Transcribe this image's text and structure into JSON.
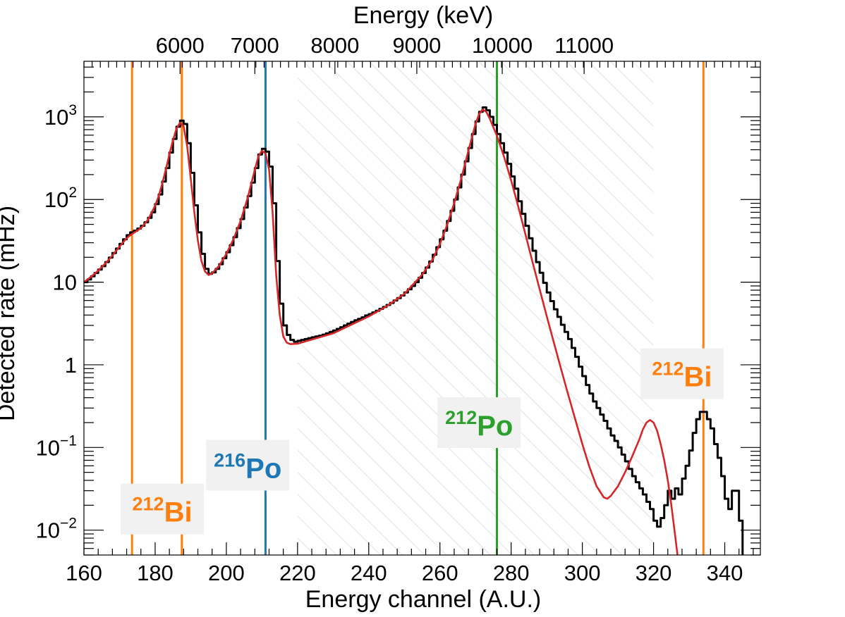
{
  "chart_data": {
    "type": "histogram",
    "xlabel": "Energy channel (A.U.)",
    "ylabel": "Detected rate (mHz)",
    "top_axis_label": "Energy (keV)",
    "xlim": [
      160,
      350
    ],
    "ylim": [
      0.005,
      4700
    ],
    "y_scale": "log",
    "x_ticks": [
      {
        "value": 160,
        "label": "160"
      },
      {
        "value": 180,
        "label": "180"
      },
      {
        "value": 200,
        "label": "200"
      },
      {
        "value": 220,
        "label": "220"
      },
      {
        "value": 240,
        "label": "240"
      },
      {
        "value": 260,
        "label": "260"
      },
      {
        "value": 280,
        "label": "280"
      },
      {
        "value": 300,
        "label": "300"
      },
      {
        "value": 320,
        "label": "320"
      },
      {
        "value": 340,
        "label": "340"
      }
    ],
    "top_ticks": [
      {
        "channel": 187.0,
        "label": "6000"
      },
      {
        "channel": 208.0,
        "label": "7000"
      },
      {
        "channel": 230.5,
        "label": "8000"
      },
      {
        "channel": 253.5,
        "label": "9000"
      },
      {
        "channel": 277.5,
        "label": "10000"
      },
      {
        "channel": 300.5,
        "label": "11000"
      }
    ],
    "y_ticks": [
      {
        "value": 0.01,
        "base": "10",
        "exp": "−2"
      },
      {
        "value": 0.1,
        "base": "10",
        "exp": "−1"
      },
      {
        "value": 1,
        "base": "1",
        "exp": ""
      },
      {
        "value": 10,
        "base": "10",
        "exp": ""
      },
      {
        "value": 100,
        "base": "10",
        "exp": "2"
      },
      {
        "value": 1000,
        "base": "10",
        "exp": "3"
      }
    ],
    "hatched_region": [
      220,
      320
    ],
    "vertical_lines": [
      {
        "channel": 173.5,
        "color": "#ff7f0e"
      },
      {
        "channel": 187.5,
        "color": "#ff7f0e"
      },
      {
        "channel": 211.0,
        "color": "#1f77b4"
      },
      {
        "channel": 276.0,
        "color": "#2ca02c"
      },
      {
        "channel": 334.0,
        "color": "#ff7f0e"
      }
    ],
    "isotope_labels": [
      {
        "mass": "212",
        "symbol": "Bi",
        "color": "#ff7f0e",
        "channel": 182,
        "rate": 0.018
      },
      {
        "mass": "216",
        "symbol": "Po",
        "color": "#1f77b4",
        "channel": 206,
        "rate": 0.061
      },
      {
        "mass": "212",
        "symbol": "Po",
        "color": "#2ca02c",
        "channel": 271,
        "rate": 0.2
      },
      {
        "mass": "212",
        "symbol": "Bi",
        "color": "#ff7f0e",
        "channel": 328,
        "rate": 0.78
      }
    ],
    "series": [
      {
        "style": "step",
        "color": "#000000",
        "bin_width": 1,
        "points": [
          [
            160,
            10
          ],
          [
            161,
            10.8
          ],
          [
            162,
            11.8
          ],
          [
            163,
            12.9
          ],
          [
            164,
            14.2
          ],
          [
            165,
            15.6
          ],
          [
            166,
            17.5
          ],
          [
            167,
            19.8
          ],
          [
            168,
            22.5
          ],
          [
            169,
            25.5
          ],
          [
            170,
            29
          ],
          [
            171,
            33
          ],
          [
            172,
            37
          ],
          [
            173,
            40
          ],
          [
            174,
            42
          ],
          [
            175,
            44.5
          ],
          [
            176,
            48
          ],
          [
            177,
            53
          ],
          [
            178,
            60
          ],
          [
            179,
            70
          ],
          [
            180,
            88
          ],
          [
            181,
            115
          ],
          [
            182,
            165
          ],
          [
            183,
            240
          ],
          [
            184,
            370
          ],
          [
            185,
            540
          ],
          [
            186,
            760
          ],
          [
            187,
            900
          ],
          [
            188,
            820
          ],
          [
            189,
            480
          ],
          [
            190,
            210
          ],
          [
            191,
            85
          ],
          [
            192,
            40
          ],
          [
            193,
            22
          ],
          [
            194,
            14.5
          ],
          [
            195,
            12.6
          ],
          [
            196,
            13.1
          ],
          [
            197,
            14.5
          ],
          [
            198,
            16.5
          ],
          [
            199,
            19.5
          ],
          [
            200,
            23
          ],
          [
            201,
            28
          ],
          [
            202,
            35
          ],
          [
            203,
            45
          ],
          [
            204,
            58
          ],
          [
            205,
            80
          ],
          [
            206,
            110
          ],
          [
            207,
            160
          ],
          [
            208,
            240
          ],
          [
            209,
            350
          ],
          [
            210,
            410
          ],
          [
            211,
            380
          ],
          [
            212,
            250
          ],
          [
            213,
            90
          ],
          [
            214,
            18
          ],
          [
            215,
            5.5
          ],
          [
            216,
            3
          ],
          [
            217,
            2.3
          ],
          [
            218,
            2.0
          ],
          [
            219,
            1.9
          ],
          [
            220,
            1.95
          ],
          [
            221,
            2.0
          ],
          [
            222,
            2.05
          ],
          [
            223,
            2.1
          ],
          [
            224,
            2.15
          ],
          [
            225,
            2.2
          ],
          [
            226,
            2.25
          ],
          [
            227,
            2.32
          ],
          [
            228,
            2.4
          ],
          [
            229,
            2.5
          ],
          [
            230,
            2.6
          ],
          [
            231,
            2.72
          ],
          [
            232,
            2.85
          ],
          [
            233,
            3.0
          ],
          [
            234,
            3.15
          ],
          [
            235,
            3.3
          ],
          [
            236,
            3.45
          ],
          [
            237,
            3.6
          ],
          [
            238,
            3.75
          ],
          [
            239,
            3.95
          ],
          [
            240,
            4.1
          ],
          [
            241,
            4.3
          ],
          [
            242,
            4.5
          ],
          [
            243,
            4.75
          ],
          [
            244,
            5.0
          ],
          [
            245,
            5.3
          ],
          [
            246,
            5.6
          ],
          [
            247,
            6.0
          ],
          [
            248,
            6.4
          ],
          [
            249,
            6.9
          ],
          [
            250,
            7.5
          ],
          [
            251,
            8.2
          ],
          [
            252,
            9.0
          ],
          [
            253,
            10.0
          ],
          [
            254,
            11.3
          ],
          [
            255,
            12.9
          ],
          [
            256,
            15.0
          ],
          [
            257,
            17.8
          ],
          [
            258,
            21.5
          ],
          [
            259,
            26.5
          ],
          [
            260,
            33
          ],
          [
            261,
            42
          ],
          [
            262,
            55
          ],
          [
            263,
            73
          ],
          [
            264,
            100
          ],
          [
            265,
            140
          ],
          [
            266,
            200
          ],
          [
            267,
            290
          ],
          [
            268,
            420
          ],
          [
            269,
            620
          ],
          [
            270,
            880
          ],
          [
            271,
            1150
          ],
          [
            272,
            1300
          ],
          [
            273,
            1200
          ],
          [
            274,
            1000
          ],
          [
            275,
            800
          ],
          [
            276,
            620
          ],
          [
            277,
            480
          ],
          [
            278,
            370
          ],
          [
            279,
            270
          ],
          [
            280,
            190
          ],
          [
            281,
            135
          ],
          [
            282,
            95
          ],
          [
            283,
            67
          ],
          [
            284,
            48
          ],
          [
            285,
            34
          ],
          [
            286,
            24
          ],
          [
            287,
            17.5
          ],
          [
            288,
            13
          ],
          [
            289,
            9.8
          ],
          [
            290,
            7.5
          ],
          [
            291,
            5.9
          ],
          [
            292,
            4.7
          ],
          [
            293,
            3.8
          ],
          [
            294,
            3.05
          ],
          [
            295,
            2.5
          ],
          [
            296,
            2.05
          ],
          [
            297,
            1.6
          ],
          [
            298,
            1.25
          ],
          [
            299,
            0.95
          ],
          [
            300,
            0.73
          ],
          [
            301,
            0.57
          ],
          [
            302,
            0.45
          ],
          [
            303,
            0.36
          ],
          [
            304,
            0.3
          ],
          [
            305,
            0.25
          ],
          [
            306,
            0.21
          ],
          [
            307,
            0.17
          ],
          [
            308,
            0.14
          ],
          [
            309,
            0.12
          ],
          [
            310,
            0.1
          ],
          [
            311,
            0.082
          ],
          [
            312,
            0.068
          ],
          [
            313,
            0.055
          ],
          [
            314,
            0.045
          ],
          [
            315,
            0.038
          ],
          [
            316,
            0.032
          ],
          [
            317,
            0.027
          ],
          [
            318,
            0.022
          ],
          [
            319,
            0.018
          ],
          [
            320,
            0.013
          ],
          [
            321,
            0.011
          ],
          [
            322,
            0.014
          ],
          [
            323,
            0.02
          ],
          [
            324,
            0.03
          ],
          [
            325,
            0.024
          ],
          [
            326,
            0.032
          ],
          [
            327,
            0.027
          ],
          [
            328,
            0.042
          ],
          [
            329,
            0.06
          ],
          [
            330,
            0.092
          ],
          [
            331,
            0.15
          ],
          [
            332,
            0.22
          ],
          [
            333,
            0.27
          ],
          [
            334,
            0.27
          ],
          [
            335,
            0.22
          ],
          [
            336,
            0.17
          ],
          [
            337,
            0.11
          ],
          [
            338,
            0.075
          ],
          [
            339,
            0.045
          ],
          [
            340,
            0.024
          ],
          [
            341,
            0.018
          ],
          [
            342,
            0.03
          ],
          [
            343,
            0.03
          ],
          [
            344,
            0.013
          ],
          [
            345,
            0.004
          ]
        ]
      },
      {
        "style": "line",
        "color": "#d62728",
        "points": [
          [
            160,
            10
          ],
          [
            162,
            11.6
          ],
          [
            164,
            13.8
          ],
          [
            166,
            16.8
          ],
          [
            168,
            21
          ],
          [
            170,
            27
          ],
          [
            172,
            34
          ],
          [
            173,
            37
          ],
          [
            174,
            39.5
          ],
          [
            176,
            45
          ],
          [
            178,
            57
          ],
          [
            180,
            84
          ],
          [
            181,
            110
          ],
          [
            182,
            155
          ],
          [
            183,
            230
          ],
          [
            184,
            350
          ],
          [
            185,
            520
          ],
          [
            186,
            720
          ],
          [
            187,
            850
          ],
          [
            188,
            770
          ],
          [
            189,
            440
          ],
          [
            190,
            180
          ],
          [
            191,
            70
          ],
          [
            192,
            32
          ],
          [
            193,
            18
          ],
          [
            194,
            13.5
          ],
          [
            195,
            12.2
          ],
          [
            196,
            12.8
          ],
          [
            198,
            15.8
          ],
          [
            200,
            22
          ],
          [
            202,
            33
          ],
          [
            204,
            55
          ],
          [
            206,
            105
          ],
          [
            208,
            230
          ],
          [
            209,
            330
          ],
          [
            210,
            390
          ],
          [
            211,
            360
          ],
          [
            212,
            230
          ],
          [
            213,
            70
          ],
          [
            214,
            12
          ],
          [
            215,
            4
          ],
          [
            216,
            2.2
          ],
          [
            217,
            1.85
          ],
          [
            218,
            1.78
          ],
          [
            220,
            1.8
          ],
          [
            230,
            2.4
          ],
          [
            240,
            3.85
          ],
          [
            245,
            5.1
          ],
          [
            250,
            7.2
          ],
          [
            255,
            12.3
          ],
          [
            258,
            19
          ],
          [
            260,
            29
          ],
          [
            262,
            49
          ],
          [
            264,
            90
          ],
          [
            266,
            180
          ],
          [
            268,
            390
          ],
          [
            270,
            820
          ],
          [
            271,
            1080
          ],
          [
            272,
            1230
          ],
          [
            273,
            1150
          ],
          [
            274,
            950
          ],
          [
            276,
            590
          ],
          [
            278,
            330
          ],
          [
            280,
            170
          ],
          [
            282,
            82
          ],
          [
            284,
            38
          ],
          [
            286,
            17.5
          ],
          [
            288,
            8.2
          ],
          [
            290,
            3.85
          ],
          [
            292,
            1.85
          ],
          [
            294,
            0.9
          ],
          [
            296,
            0.44
          ],
          [
            298,
            0.22
          ],
          [
            300,
            0.11
          ],
          [
            302,
            0.058
          ],
          [
            304,
            0.034
          ],
          [
            306,
            0.025
          ],
          [
            307,
            0.024
          ],
          [
            308,
            0.026
          ],
          [
            310,
            0.034
          ],
          [
            312,
            0.05
          ],
          [
            314,
            0.078
          ],
          [
            316,
            0.125
          ],
          [
            317,
            0.165
          ],
          [
            318,
            0.2
          ],
          [
            319,
            0.215
          ],
          [
            320,
            0.2
          ],
          [
            321,
            0.16
          ],
          [
            322,
            0.11
          ],
          [
            323,
            0.07
          ],
          [
            324,
            0.04
          ],
          [
            325,
            0.02
          ],
          [
            326,
            0.009
          ],
          [
            327,
            0.004
          ]
        ]
      }
    ]
  }
}
